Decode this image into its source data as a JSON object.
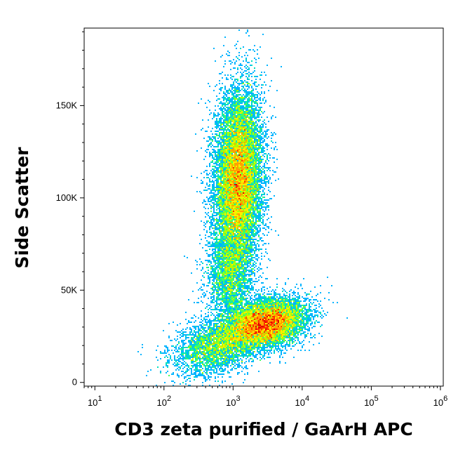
{
  "chart_data": {
    "type": "scatter",
    "style": "flow-cytometry density plot",
    "xlabel": "CD3 zeta purified / GaArH APC",
    "ylabel": "Side Scatter",
    "x_scale": "log",
    "xlim": [
      7,
      1100000
    ],
    "ylim": [
      -2000,
      192000
    ],
    "x_ticks": [
      {
        "value": 10,
        "base": "10",
        "exp": "1"
      },
      {
        "value": 100,
        "base": "10",
        "exp": "2"
      },
      {
        "value": 1000,
        "base": "10",
        "exp": "3"
      },
      {
        "value": 10000,
        "base": "10",
        "exp": "4"
      },
      {
        "value": 100000,
        "base": "10",
        "exp": "5"
      },
      {
        "value": 1000000,
        "base": "10",
        "exp": "6"
      }
    ],
    "y_ticks": [
      {
        "value": 0,
        "label": "0"
      },
      {
        "value": 50000,
        "label": "50K"
      },
      {
        "value": 100000,
        "label": "100K"
      },
      {
        "value": 150000,
        "label": "150K"
      }
    ],
    "populations": [
      {
        "name": "upper",
        "x_center": 1200,
        "y_center": 110000,
        "log_x_spread": 0.17,
        "y_spread": 24000,
        "events": 14000,
        "corr": 0.1
      },
      {
        "name": "lower",
        "x_center": 3000,
        "y_center": 32000,
        "log_x_spread": 0.28,
        "y_spread": 6500,
        "events": 9000,
        "corr": 0.25
      },
      {
        "name": "bridge",
        "x_center": 900,
        "y_center": 58000,
        "log_x_spread": 0.16,
        "y_spread": 14000,
        "events": 2500,
        "corr": 0.0
      },
      {
        "name": "low-tail",
        "x_center": 600,
        "y_center": 20000,
        "log_x_spread": 0.32,
        "y_spread": 8000,
        "events": 3500,
        "corr": 0.35
      }
    ],
    "colormap": [
      "#0000ff",
      "#0050ff",
      "#00b4ff",
      "#00e0c0",
      "#40ff60",
      "#b0ff00",
      "#ffee00",
      "#ffa000",
      "#ff3000",
      "#e00000"
    ],
    "grid": false,
    "legend": "none"
  }
}
